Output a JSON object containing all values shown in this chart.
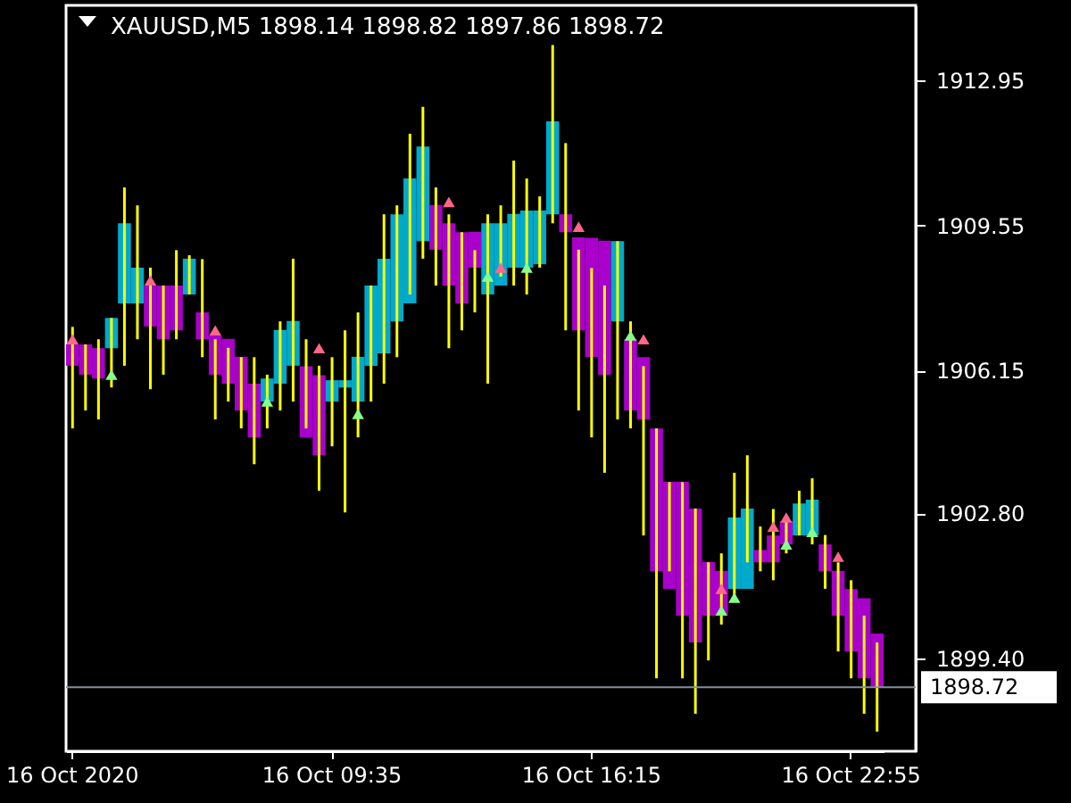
{
  "chart_data": {
    "type": "bar",
    "title": "XAUUSD,M5  1898.14 1898.82 1897.86 1898.72",
    "categories": [
      "16 Oct 2020",
      null,
      null,
      null,
      null,
      null,
      null,
      null,
      null,
      null,
      null,
      null,
      null,
      null,
      null,
      null,
      null,
      null,
      null,
      null,
      "16 Oct 09:35",
      null,
      null,
      null,
      null,
      null,
      null,
      null,
      null,
      null,
      null,
      null,
      null,
      null,
      null,
      null,
      null,
      null,
      null,
      null,
      "16 Oct 16:15",
      null,
      null,
      null,
      null,
      null,
      null,
      null,
      null,
      null,
      null,
      null,
      null,
      null,
      null,
      null,
      null,
      null,
      null,
      null,
      "16 Oct 22:55",
      null,
      null
    ],
    "ylim": [
      1897.22,
      1914.71
    ],
    "yticks": [
      {
        "value": 1899.4,
        "label": "1899.40"
      },
      {
        "value": 1902.8,
        "label": "1902.80"
      },
      {
        "value": 1906.15,
        "label": "1906.15"
      },
      {
        "value": 1909.55,
        "label": "1909.55"
      },
      {
        "value": 1912.95,
        "label": "1912.95"
      }
    ],
    "series": [
      {
        "colors": [
          "#aa00cc",
          "#aa00cc",
          "#aa00cc",
          "#00aacc",
          "#00aacc",
          "#00aacc",
          "#aa00cc",
          "#aa00cc",
          "#aa00cc",
          "#00aacc",
          "#aa00cc",
          "#aa00cc",
          "#aa00cc",
          "#aa00cc",
          "#aa00cc",
          "#00aacc",
          "#00aacc",
          "#00aacc",
          "#aa00cc",
          "#aa00cc",
          "#00aacc",
          "#00aacc",
          "#00aacc",
          "#00aacc",
          "#00aacc",
          "#00aacc",
          "#00aacc",
          "#00aacc",
          "#aa00cc",
          "#aa00cc",
          "#aa00cc",
          "#aa00cc",
          "#00aacc",
          "#00aacc",
          "#00aacc",
          "#00aacc",
          "#00aacc",
          "#00aacc",
          "#aa00cc",
          "#aa00cc",
          "#aa00cc",
          "#aa00cc",
          "#00aacc",
          "#aa00cc",
          "#aa00cc",
          "#aa00cc",
          "#aa00cc",
          "#aa00cc",
          "#aa00cc",
          "#aa00cc",
          "#aa00cc",
          "#00aacc",
          "#00aacc",
          "#aa00cc",
          "#aa00cc",
          "#aa00cc",
          "#00aacc",
          "#00aacc",
          "#aa00cc",
          "#aa00cc",
          "#aa00cc",
          "#aa00cc",
          "#aa00cc"
        ],
        "base": [
          1906.26,
          1906.05,
          1905.96,
          1906.67,
          1907.72,
          1907.72,
          1907.18,
          1906.88,
          1907.09,
          1907.93,
          1906.88,
          1906.05,
          1905.84,
          1905.21,
          1904.58,
          1905.42,
          1905.84,
          1906.26,
          1904.58,
          1904.16,
          1905.42,
          1905.75,
          1905.42,
          1906.26,
          1906.55,
          1907.3,
          1907.72,
          1909.18,
          1908.98,
          1908.14,
          1907.72,
          1908.56,
          1907.93,
          1908.14,
          1908.56,
          1908.56,
          1908.64,
          1909.81,
          1909.39,
          1907.09,
          1906.46,
          1906.05,
          1907.3,
          1905.21,
          1905.0,
          1901.44,
          1901.03,
          1900.4,
          1899.77,
          1900.4,
          1900.4,
          1901.03,
          1901.03,
          1901.65,
          1901.65,
          1902.07,
          1902.28,
          1902.28,
          1901.44,
          1900.4,
          1899.56,
          1898.93,
          1898.72
        ],
        "values": [
          0.5,
          0.71,
          0.71,
          0.71,
          1.88,
          0.84,
          0.96,
          1.26,
          1.05,
          0.84,
          0.63,
          0.92,
          1.05,
          1.26,
          1.26,
          0.54,
          1.26,
          1.05,
          1.67,
          1.88,
          0.5,
          0.17,
          1.05,
          1.88,
          2.22,
          2.51,
          2.93,
          2.22,
          1.05,
          1.46,
          1.67,
          0.84,
          1.67,
          1.46,
          1.26,
          1.34,
          1.26,
          2.18,
          0.42,
          2.18,
          2.8,
          3.14,
          1.88,
          1.67,
          1.46,
          3.35,
          2.51,
          3.14,
          3.14,
          1.26,
          1.05,
          1.67,
          1.88,
          0.29,
          0.63,
          0.54,
          0.75,
          0.84,
          0.63,
          1.05,
          1.46,
          1.88,
          1.26
        ]
      },
      {
        "color": "#ffff00",
        "base": [
          1904.79,
          1905.21,
          1905.0,
          1905.75,
          1906.26,
          1906.88,
          1905.71,
          1906.05,
          1906.88,
          1907.93,
          1906.46,
          1905.0,
          1905.42,
          1904.79,
          1903.95,
          1904.79,
          1905.21,
          1905.42,
          1904.79,
          1903.33,
          1904.37,
          1902.82,
          1904.58,
          1905.42,
          1905.84,
          1906.46,
          1907.93,
          1908.77,
          1908.14,
          1906.67,
          1907.09,
          1907.51,
          1905.84,
          1908.35,
          1908.14,
          1907.93,
          1908.56,
          1909.6,
          1907.09,
          1905.21,
          1904.58,
          1903.75,
          1905.0,
          1904.79,
          1902.28,
          1898.93,
          1901.44,
          1898.93,
          1898.1,
          1899.35,
          1900.19,
          1900.82,
          1901.65,
          1901.44,
          1901.23,
          1901.86,
          1902.28,
          1902.07,
          1901.03,
          1899.56,
          1898.93,
          1898.1,
          1897.68
        ],
        "values": [
          2.38,
          1.55,
          1.88,
          1.63,
          4.18,
          3.14,
          2.85,
          2.09,
          2.09,
          0.92,
          2.3,
          1.88,
          1.26,
          1.67,
          2.51,
          1.26,
          2.09,
          3.35,
          2.09,
          2.93,
          2.09,
          4.27,
          2.93,
          2.72,
          3.97,
          3.56,
          3.77,
          3.56,
          2.3,
          3.14,
          2.3,
          1.46,
          3.97,
          1.67,
          2.93,
          2.72,
          1.67,
          4.18,
          4.39,
          3.77,
          3.97,
          4.39,
          4.18,
          2.51,
          3.97,
          5.86,
          2.09,
          4.6,
          4.81,
          2.3,
          1.67,
          2.93,
          2.51,
          1.05,
          1.67,
          0.84,
          1.05,
          1.55,
          1.26,
          2.09,
          2.3,
          2.3,
          2.09
        ]
      },
      {
        "type": "scatter",
        "color": "#ff6688",
        "marker": "triangle",
        "values": [
          1906.88,
          null,
          null,
          null,
          null,
          null,
          1908.26,
          null,
          null,
          null,
          null,
          1907.09,
          null,
          null,
          null,
          null,
          null,
          null,
          null,
          1906.67,
          null,
          null,
          null,
          null,
          null,
          null,
          null,
          null,
          null,
          1910.1,
          null,
          null,
          null,
          1908.56,
          null,
          null,
          null,
          null,
          null,
          1909.52,
          null,
          null,
          null,
          null,
          1906.88,
          null,
          null,
          null,
          null,
          null,
          1901.03,
          null,
          null,
          null,
          1902.49,
          1902.7,
          null,
          null,
          null,
          1901.78,
          null,
          null,
          null
        ]
      },
      {
        "type": "scatter",
        "color": "#88ff88",
        "marker": "triangle",
        "values": [
          null,
          null,
          null,
          1906.05,
          null,
          null,
          null,
          null,
          null,
          null,
          null,
          null,
          null,
          null,
          null,
          1905.42,
          null,
          null,
          null,
          null,
          null,
          null,
          1905.13,
          null,
          null,
          null,
          null,
          null,
          null,
          null,
          null,
          null,
          1908.35,
          null,
          null,
          1908.56,
          null,
          null,
          null,
          null,
          null,
          null,
          null,
          1906.97,
          null,
          null,
          null,
          null,
          null,
          null,
          1900.52,
          1900.82,
          null,
          null,
          null,
          1902.07,
          null,
          1902.36,
          null,
          null,
          null,
          null,
          null
        ]
      }
    ],
    "ref_lines": [
      {
        "axis": "y",
        "value": 1898.72,
        "label": "1898.72",
        "color": "#8090a0"
      }
    ],
    "grid": false
  }
}
